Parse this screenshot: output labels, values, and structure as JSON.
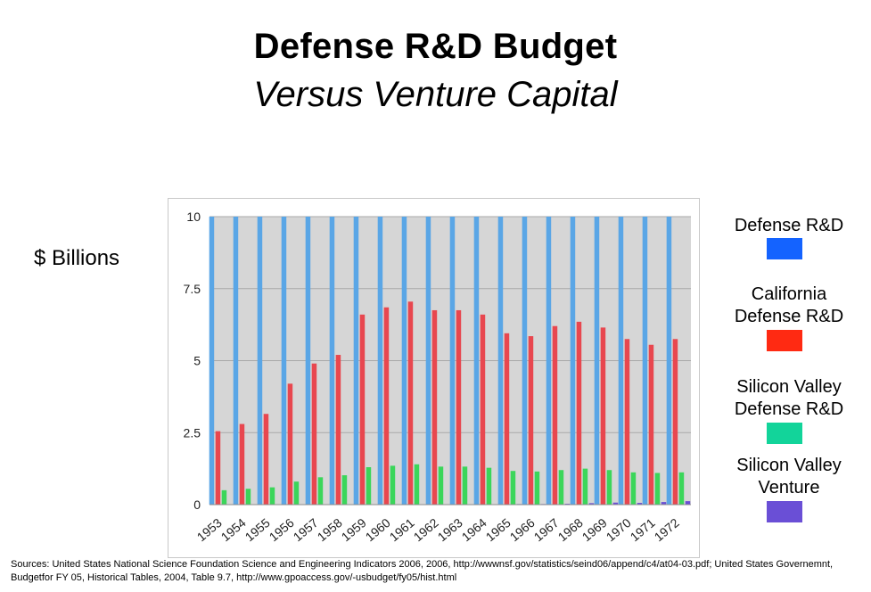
{
  "slide": {
    "title": "Defense R&D Budget",
    "subtitle": "Versus Venture Capital",
    "ylabel": "$ Billions",
    "sources": "Sources: United States National Science Foundation Science and Engineering Indicators 2006, 2006, http://wwwnsf.gov/statistics/seind06/append/c4/at04-03.pdf; United States Governemnt, Budgetfor FY 05, Historical Tables, 2004, Table 9.7, http://www.gpoaccess.gov/-usbudget/fy05/hist.html"
  },
  "legend": [
    {
      "label_lines": [
        "Defense R&D"
      ],
      "color": "#1463ff"
    },
    {
      "label_lines": [
        "California",
        "Defense R&D"
      ],
      "color": "#ff2a12"
    },
    {
      "label_lines": [
        "Silicon Valley",
        "Defense R&D"
      ],
      "color": "#12d49a"
    },
    {
      "label_lines": [
        "Silicon Valley",
        "Venture"
      ],
      "color": "#6a4fd6"
    }
  ],
  "chart_data": {
    "type": "bar",
    "title": "",
    "xlabel": "",
    "ylabel": "$ Billions",
    "ylim": [
      0,
      10
    ],
    "yticks": [
      0,
      2.5,
      5,
      7.5,
      10
    ],
    "ytick_labels": [
      "0",
      "2.5",
      "5",
      "7.5",
      "10"
    ],
    "grid": true,
    "categories": [
      "1953",
      "1954",
      "1955",
      "1956",
      "1957",
      "1958",
      "1959",
      "1960",
      "1961",
      "1962",
      "1963",
      "1964",
      "1965",
      "1966",
      "1967",
      "1968",
      "1969",
      "1970",
      "1971",
      "1972"
    ],
    "series": [
      {
        "name": "Defense R&D",
        "color": "#5aa6e6",
        "values": [
          10,
          10,
          10,
          10,
          10,
          10,
          10,
          10,
          10,
          10,
          10,
          10,
          10,
          10,
          10,
          10,
          10,
          10,
          10,
          10
        ]
      },
      {
        "name": "California Defense R&D",
        "color": "#e8474f",
        "values": [
          2.55,
          2.8,
          3.15,
          4.2,
          4.9,
          5.2,
          6.6,
          6.85,
          7.05,
          6.75,
          6.75,
          6.6,
          5.95,
          5.85,
          6.2,
          6.35,
          6.15,
          5.75,
          5.55,
          5.75
        ]
      },
      {
        "name": "Silicon Valley Defense R&D",
        "color": "#3bd65a",
        "values": [
          0.5,
          0.55,
          0.6,
          0.8,
          0.95,
          1.02,
          1.3,
          1.35,
          1.4,
          1.32,
          1.32,
          1.28,
          1.17,
          1.15,
          1.2,
          1.25,
          1.2,
          1.12,
          1.1,
          1.12
        ]
      },
      {
        "name": "Silicon Valley Venture",
        "color": "#6a4fd6",
        "values": [
          0,
          0,
          0,
          0,
          0,
          0,
          0,
          0,
          0,
          0,
          0,
          0.01,
          0.02,
          0.02,
          0.03,
          0.05,
          0.07,
          0.06,
          0.09,
          0.12
        ]
      }
    ]
  }
}
